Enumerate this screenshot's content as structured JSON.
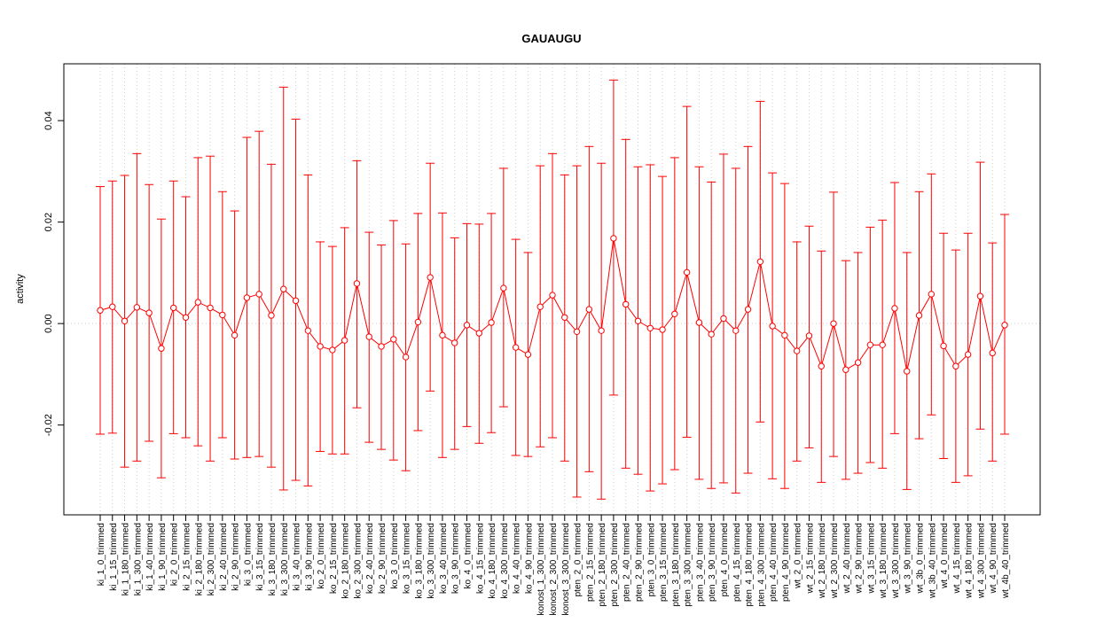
{
  "chart_data": {
    "type": "errorbar",
    "title": "GAUAUGU",
    "y_label": "activity",
    "categories": [
      "ki_1_0_trimmed",
      "ki_1_15_trimmed",
      "ki_1_180_trimmed",
      "ki_1_300_trimmed",
      "ki_1_40_trimmed",
      "ki_1_90_trimmed",
      "ki_2_0_trimmed",
      "ki_2_15_trimmed",
      "ki_2_180_trimmed",
      "ki_2_300_trimmed",
      "ki_2_40_trimmed",
      "ki_2_90_trimmed",
      "ki_3_0_trimmed",
      "ki_3_15_trimmed",
      "ki_3_180_trimmed",
      "ki_3_300_trimmed",
      "ki_3_40_trimmed",
      "ki_3_90_trimmed",
      "ko_2_0_trimmed",
      "ko_2_15_trimmed",
      "ko_2_180_trimmed",
      "ko_2_300_trimmed",
      "ko_2_40_trimmed",
      "ko_2_90_trimmed",
      "ko_3_0_trimmed",
      "ko_3_15_trimmed",
      "ko_3_180_trimmed",
      "ko_3_300_trimmed",
      "ko_3_40_trimmed",
      "ko_3_90_trimmed",
      "ko_4_0_trimmed",
      "ko_4_15_trimmed",
      "ko_4_180_trimmed",
      "ko_4_300_trimmed",
      "ko_4_40_trimmed",
      "ko_4_90_trimmed",
      "konost_1_300_trimmed",
      "konost_2_300_trimmed",
      "konost_3_300_trimmed",
      "pten_2_0_trimmed",
      "pten_2_15_trimmed",
      "pten_2_180_trimmed",
      "pten_2_300_trimmed",
      "pten_2_40_trimmed",
      "pten_2_90_trimmed",
      "pten_3_0_trimmed",
      "pten_3_15_trimmed",
      "pten_3_180_trimmed",
      "pten_3_300_trimmed",
      "pten_3_40_trimmed",
      "pten_3_90_trimmed",
      "pten_4_0_trimmed",
      "pten_4_15_trimmed",
      "pten_4_180_trimmed",
      "pten_4_300_trimmed",
      "pten_4_40_trimmed",
      "pten_4_90_trimmed",
      "wt_2_0_trimmed",
      "wt_2_15_trimmed",
      "wt_2_180_trimmed",
      "wt_2_300_trimmed",
      "wt_2_40_trimmed",
      "wt_2_90_trimmed",
      "wt_3_15_trimmed",
      "wt_3_180_trimmed",
      "wt_3_300_trimmed",
      "wt_3_90_trimmed",
      "wt_3b_0_trimmed",
      "wt_3b_40_trimmed",
      "wt_4_0_trimmed",
      "wt_4_15_trimmed",
      "wt_4_180_trimmed",
      "wt_4_300_trimmed",
      "wt_4_90_trimmed",
      "wt_4b_40_trimmed"
    ],
    "series": [
      {
        "color": "#ff0000",
        "values": [
          0.0026,
          0.0033,
          0.0005,
          0.0032,
          0.0021,
          -0.0049,
          0.0031,
          0.0012,
          0.0042,
          0.0031,
          0.0017,
          -0.0023,
          0.0051,
          0.0058,
          0.0016,
          0.0068,
          0.0045,
          -0.0014,
          -0.0045,
          -0.0052,
          -0.0033,
          0.0079,
          -0.0026,
          -0.0045,
          -0.0031,
          -0.0066,
          0.0003,
          0.0091,
          -0.0023,
          -0.0038,
          -0.0003,
          -0.0019,
          0.0002,
          0.007,
          -0.0047,
          -0.0061,
          0.0033,
          0.0056,
          0.0012,
          -0.0016,
          0.0028,
          -0.0014,
          0.0168,
          0.0038,
          0.0005,
          -0.0009,
          -0.0012,
          0.0019,
          0.0101,
          0.0002,
          -0.0021,
          0.001,
          -0.0014,
          0.0028,
          0.0122,
          -0.0005,
          -0.0023,
          -0.0054,
          -0.0024,
          -0.0084,
          0,
          -0.0091,
          -0.0077,
          -0.0042,
          -0.0042,
          0.003,
          -0.0094,
          0.0016,
          0.0058,
          -0.0044,
          -0.0084,
          -0.0061,
          0.0054,
          -0.0058,
          -0.0003
        ],
        "upper": [
          0.027,
          0.0281,
          0.0292,
          0.0335,
          0.0274,
          0.0206,
          0.0281,
          0.025,
          0.0327,
          0.033,
          0.026,
          0.0222,
          0.0367,
          0.0379,
          0.0314,
          0.0466,
          0.0403,
          0.0293,
          0.0161,
          0.0152,
          0.0189,
          0.0321,
          0.018,
          0.0155,
          0.0203,
          0.0157,
          0.0217,
          0.0316,
          0.0218,
          0.0169,
          0.0197,
          0.0196,
          0.0217,
          0.0306,
          0.0166,
          0.014,
          0.0311,
          0.0335,
          0.0293,
          0.0311,
          0.0349,
          0.0316,
          0.048,
          0.0363,
          0.0309,
          0.0313,
          0.029,
          0.0327,
          0.0428,
          0.0309,
          0.0279,
          0.0334,
          0.0306,
          0.0349,
          0.0438,
          0.0297,
          0.0276,
          0.0161,
          0.0192,
          0.0143,
          0.0259,
          0.0124,
          0.014,
          0.019,
          0.0204,
          0.0278,
          0.014,
          0.026,
          0.0295,
          0.0178,
          0.0145,
          0.0178,
          0.0318,
          0.0159,
          0.0215
        ],
        "lower": [
          -0.0218,
          -0.0216,
          -0.0283,
          -0.0271,
          -0.0232,
          -0.0304,
          -0.0217,
          -0.0225,
          -0.0241,
          -0.0271,
          -0.0225,
          -0.0267,
          -0.0264,
          -0.0262,
          -0.0283,
          -0.0328,
          -0.0309,
          -0.032,
          -0.0252,
          -0.0257,
          -0.0257,
          -0.0166,
          -0.0234,
          -0.0248,
          -0.0269,
          -0.029,
          -0.0211,
          -0.0133,
          -0.0264,
          -0.0248,
          -0.0203,
          -0.0236,
          -0.0215,
          -0.0164,
          -0.026,
          -0.0262,
          -0.0243,
          -0.0225,
          -0.0271,
          -0.0342,
          -0.0292,
          -0.0346,
          -0.0141,
          -0.0285,
          -0.0297,
          -0.033,
          -0.0316,
          -0.0288,
          -0.0224,
          -0.0307,
          -0.0325,
          -0.0314,
          -0.0334,
          -0.0295,
          -0.0194,
          -0.0306,
          -0.0325,
          -0.0271,
          -0.0245,
          -0.0313,
          -0.0262,
          -0.0307,
          -0.0295,
          -0.0274,
          -0.0285,
          -0.0217,
          -0.0327,
          -0.0227,
          -0.018,
          -0.0266,
          -0.0313,
          -0.03,
          -0.0208,
          -0.0271,
          -0.0218
        ]
      }
    ],
    "ylim": [
      -0.0377,
      0.0512
    ],
    "yticks": [
      -0.02,
      {
        "value": 0,
        "label": "0.00"
      },
      0.02,
      0.04
    ],
    "reference_line": 0,
    "grid": true
  }
}
